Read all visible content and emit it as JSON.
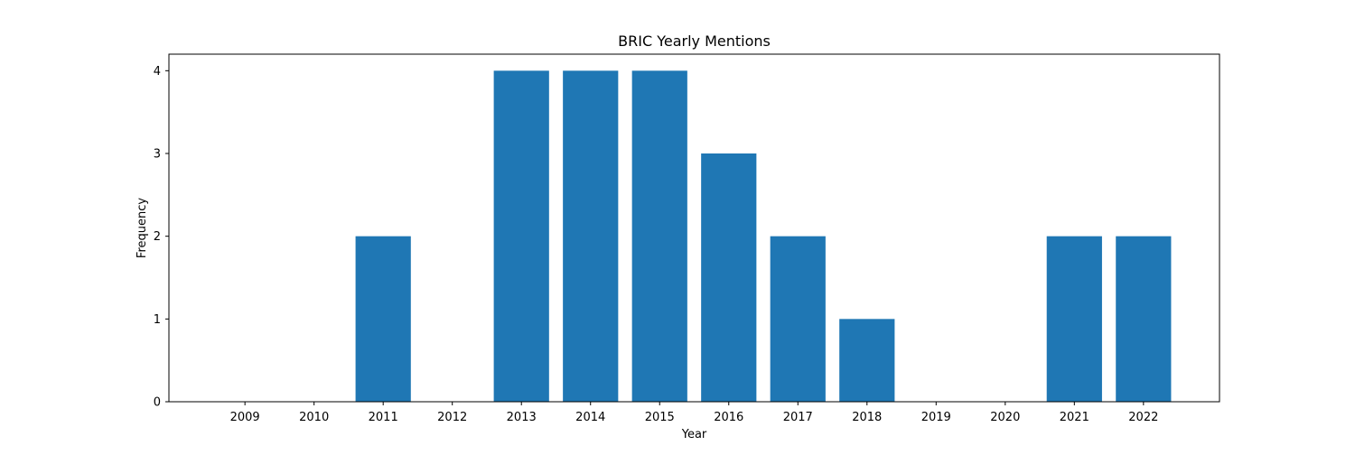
{
  "chart_data": {
    "type": "bar",
    "title": "BRIC Yearly Mentions",
    "xlabel": "Year",
    "ylabel": "Frequency",
    "categories": [
      "2009",
      "2010",
      "2011",
      "2012",
      "2013",
      "2014",
      "2015",
      "2016",
      "2017",
      "2018",
      "2019",
      "2020",
      "2021",
      "2022"
    ],
    "values": [
      0,
      0,
      2,
      0,
      4,
      4,
      4,
      3,
      2,
      1,
      0,
      0,
      2,
      2
    ],
    "ylim": [
      0,
      4.2
    ],
    "yticks": [
      0,
      1,
      2,
      3,
      4
    ],
    "bar_color": "#1f77b4",
    "grid": false,
    "legend": false
  }
}
